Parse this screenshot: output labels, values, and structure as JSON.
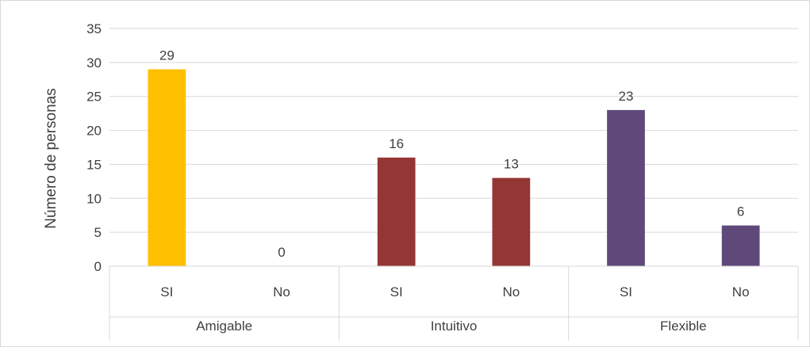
{
  "chart_data": {
    "type": "bar",
    "ylabel": "Número de personas",
    "ylim": [
      0,
      35
    ],
    "yticks": [
      0,
      5,
      10,
      15,
      20,
      25,
      30,
      35
    ],
    "grid": true,
    "legend": "none",
    "groups": [
      {
        "label": "Amigable",
        "color": "#FFC000",
        "bars": [
          {
            "category": "SI",
            "value": 29
          },
          {
            "category": "No",
            "value": 0
          }
        ]
      },
      {
        "label": "Intuitivo",
        "color": "#943634",
        "bars": [
          {
            "category": "SI",
            "value": 16
          },
          {
            "category": "No",
            "value": 13
          }
        ]
      },
      {
        "label": "Flexible",
        "color": "#5F497A",
        "bars": [
          {
            "category": "SI",
            "value": 23
          },
          {
            "category": "No",
            "value": 6
          }
        ]
      }
    ]
  }
}
